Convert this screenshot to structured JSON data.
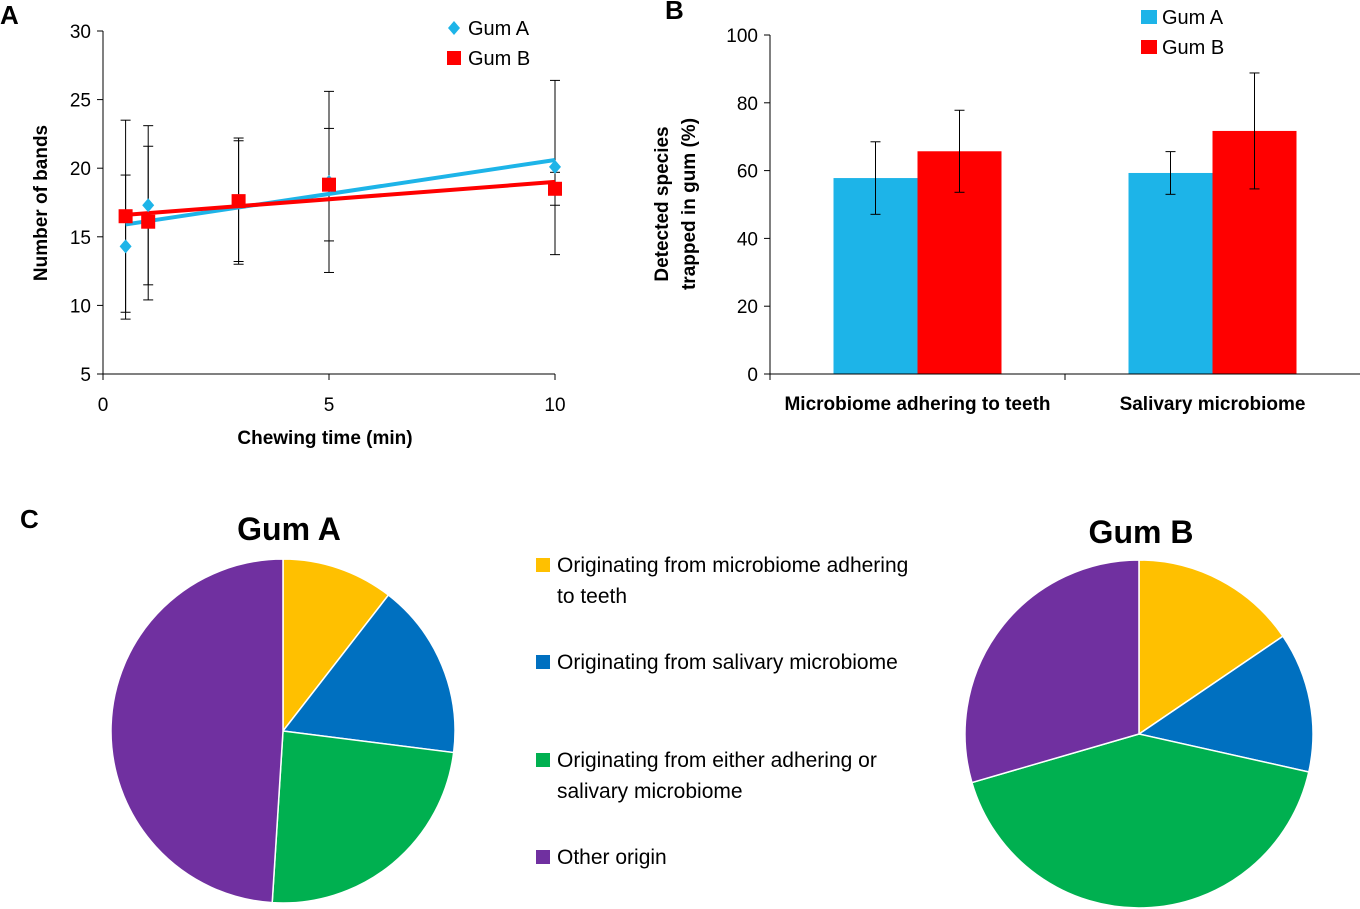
{
  "panels": {
    "a": "A",
    "b": "B",
    "c": "C"
  },
  "colors": {
    "gum_a": "#1DB4E8",
    "gum_b": "#FF0000",
    "teeth": "#FFC000",
    "salivary": "#0070C0",
    "either": "#00B050",
    "other": "#7030A0"
  },
  "chart_data": [
    {
      "type": "scatter",
      "panel": "A",
      "xlabel": "Chewing time (min)",
      "ylabel": "Number of bands",
      "xlim": [
        0,
        10
      ],
      "ylim": [
        5,
        30
      ],
      "xticks": [
        0,
        5,
        10
      ],
      "yticks": [
        5,
        10,
        15,
        20,
        25,
        30
      ],
      "grid": false,
      "legend_position": "top-right",
      "series": [
        {
          "name": "Gum A",
          "color": "#1DB4E8",
          "marker": "diamond",
          "x": [
            0.5,
            1,
            3,
            5,
            10
          ],
          "y": [
            14.3,
            17.3,
            17.6,
            19.0,
            20.1
          ],
          "err_low": [
            9.5,
            11.5,
            13.2,
            12.4,
            13.7
          ],
          "err_high": [
            19.5,
            23.1,
            22.0,
            22.9,
            26.4
          ],
          "trendline": [
            [
              0.5,
              15.9
            ],
            [
              10,
              20.6
            ]
          ]
        },
        {
          "name": "Gum B",
          "color": "#FF0000",
          "marker": "square",
          "x": [
            0.5,
            1,
            3,
            5,
            10
          ],
          "y": [
            16.5,
            16.1,
            17.6,
            18.8,
            18.5
          ],
          "err_low": [
            9.0,
            10.4,
            13.0,
            14.7,
            17.3
          ],
          "err_high": [
            23.5,
            21.6,
            22.2,
            25.6,
            19.7
          ],
          "trendline": [
            [
              0.5,
              16.6
            ],
            [
              10,
              19.0
            ]
          ]
        }
      ]
    },
    {
      "type": "bar",
      "panel": "B",
      "categories": [
        "Microbiome adhering to teeth",
        "Salivary microbiome"
      ],
      "ylabel_lines": [
        "Detected species",
        "trapped in gum (%)"
      ],
      "ylim": [
        0,
        100
      ],
      "yticks": [
        0,
        20,
        40,
        60,
        80,
        100
      ],
      "grid": false,
      "legend_position": "top-right",
      "series": [
        {
          "name": "Gum A",
          "color": "#1DB4E8",
          "values": [
            57.8,
            59.3
          ],
          "err": [
            10.7,
            6.3
          ]
        },
        {
          "name": "Gum B",
          "color": "#FF0000",
          "values": [
            65.7,
            71.7
          ],
          "err": [
            12.1,
            17.1
          ]
        }
      ]
    },
    {
      "type": "pie",
      "panel": "C",
      "title": "Gum A",
      "labels": [
        "Originating from microbiome adhering to teeth",
        "Originating from salivary microbiome",
        "Originating from either adhering or salivary microbiome",
        "Other origin"
      ],
      "values": [
        10.5,
        16.5,
        24.0,
        49.0
      ]
    },
    {
      "type": "pie",
      "panel": "C",
      "title": "Gum B",
      "labels": [
        "Originating from microbiome adhering to teeth",
        "Originating from salivary microbiome",
        "Originating from either adhering or salivary microbiome",
        "Other origin"
      ],
      "values": [
        15.5,
        13.0,
        42.0,
        29.5
      ]
    }
  ],
  "pie_legend": [
    {
      "lines": [
        "Originating from microbiome adhering",
        "to teeth"
      ],
      "color": "#FFC000"
    },
    {
      "lines": [
        "Originating from salivary microbiome"
      ],
      "color": "#0070C0"
    },
    {
      "lines": [
        "Originating from either adhering or",
        "salivary microbiome"
      ],
      "color": "#00B050"
    },
    {
      "lines": [
        "Other origin"
      ],
      "color": "#7030A0"
    }
  ]
}
